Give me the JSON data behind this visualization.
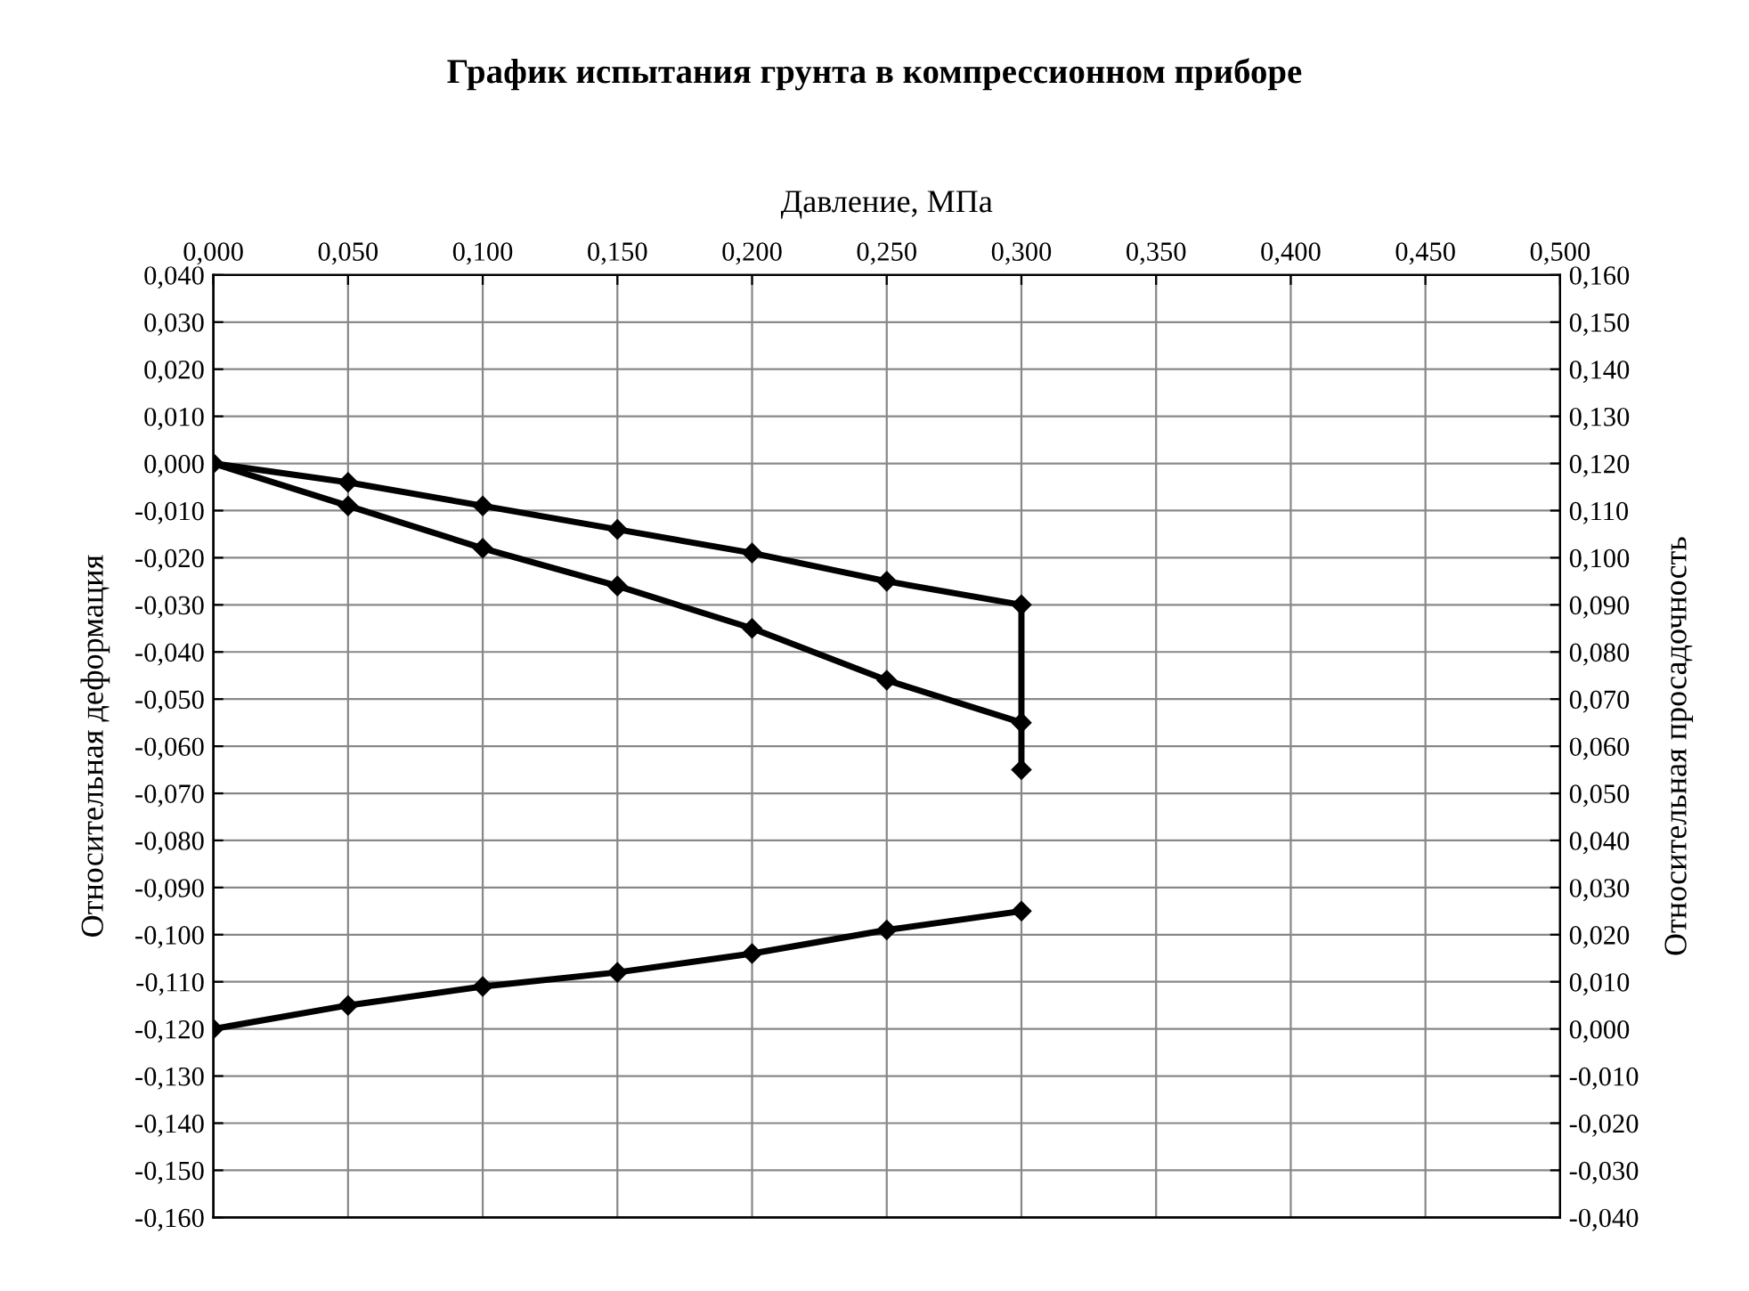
{
  "chart_data": {
    "type": "line",
    "title": "График испытания грунта в компрессионном приборе",
    "xlabel": "Давление, МПа",
    "ylabel": "Относительная деформация",
    "y2label": "Относительная просадочность",
    "marker": "diamond",
    "line_style": "solid",
    "grid": true,
    "series": [
      {
        "color": "#000000",
        "x": [
          0,
          0.05,
          0.1,
          0.15,
          0.2,
          0.25,
          0.3,
          0.3
        ],
        "values": [
          0,
          -0.004,
          -0.009,
          -0.014,
          -0.019,
          -0.025,
          -0.03,
          -0.065
        ]
      },
      {
        "color": "#000000",
        "x": [
          0,
          0.05,
          0.1,
          0.15,
          0.2,
          0.25,
          0.3
        ],
        "values": [
          0,
          -0.009,
          -0.018,
          -0.026,
          -0.035,
          -0.046,
          -0.055
        ]
      },
      {
        "color": "#000000",
        "axis": "y2",
        "x": [
          0,
          0.05,
          0.1,
          0.15,
          0.2,
          0.25,
          0.3
        ],
        "values": [
          0,
          0.005,
          0.009,
          0.012,
          0.016,
          0.021,
          0.025
        ]
      }
    ],
    "xlim": [
      0,
      0.5
    ],
    "xticks": [
      {
        "value": 0,
        "label": "0,000"
      },
      {
        "value": 0.05,
        "label": "0,050"
      },
      {
        "value": 0.1,
        "label": "0,100"
      },
      {
        "value": 0.15,
        "label": "0,150"
      },
      {
        "value": 0.2,
        "label": "0,200"
      },
      {
        "value": 0.25,
        "label": "0,250"
      },
      {
        "value": 0.3,
        "label": "0,300"
      },
      {
        "value": 0.35,
        "label": "0,350"
      },
      {
        "value": 0.4,
        "label": "0,400"
      },
      {
        "value": 0.45,
        "label": "0,450"
      },
      {
        "value": 0.5,
        "label": "0,500"
      }
    ],
    "ylim": [
      -0.16,
      0.04
    ],
    "yticks": [
      {
        "value": 0.04,
        "label": "0,040"
      },
      {
        "value": 0.03,
        "label": "0,030"
      },
      {
        "value": 0.02,
        "label": "0,020"
      },
      {
        "value": 0.01,
        "label": "0,010"
      },
      {
        "value": 0,
        "label": "0,000"
      },
      {
        "value": -0.01,
        "label": "-0,010"
      },
      {
        "value": -0.02,
        "label": "-0,020"
      },
      {
        "value": -0.03,
        "label": "-0,030"
      },
      {
        "value": -0.04,
        "label": "-0,040"
      },
      {
        "value": -0.05,
        "label": "-0,050"
      },
      {
        "value": -0.06,
        "label": "-0,060"
      },
      {
        "value": -0.07,
        "label": "-0,070"
      },
      {
        "value": -0.08,
        "label": "-0,080"
      },
      {
        "value": -0.09,
        "label": "-0,090"
      },
      {
        "value": -0.1,
        "label": "-0,100"
      },
      {
        "value": -0.11,
        "label": "-0,110"
      },
      {
        "value": -0.12,
        "label": "-0,120"
      },
      {
        "value": -0.13,
        "label": "-0,130"
      },
      {
        "value": -0.14,
        "label": "-0,140"
      },
      {
        "value": -0.15,
        "label": "-0,150"
      },
      {
        "value": -0.16,
        "label": "-0,160"
      }
    ],
    "y2lim": [
      -0.04,
      0.16
    ],
    "y2ticks": [
      {
        "value": 0.16,
        "label": "0,160"
      },
      {
        "value": 0.15,
        "label": "0,150"
      },
      {
        "value": 0.14,
        "label": "0,140"
      },
      {
        "value": 0.13,
        "label": "0,130"
      },
      {
        "value": 0.12,
        "label": "0,120"
      },
      {
        "value": 0.11,
        "label": "0,110"
      },
      {
        "value": 0.1,
        "label": "0,100"
      },
      {
        "value": 0.09,
        "label": "0,090"
      },
      {
        "value": 0.08,
        "label": "0,080"
      },
      {
        "value": 0.07,
        "label": "0,070"
      },
      {
        "value": 0.06,
        "label": "0,060"
      },
      {
        "value": 0.05,
        "label": "0,050"
      },
      {
        "value": 0.04,
        "label": "0,040"
      },
      {
        "value": 0.03,
        "label": "0,030"
      },
      {
        "value": 0.02,
        "label": "0,020"
      },
      {
        "value": 0.01,
        "label": "0,010"
      },
      {
        "value": 0,
        "label": "0,000"
      },
      {
        "value": -0.01,
        "label": "-0,010"
      },
      {
        "value": -0.02,
        "label": "-0,020"
      },
      {
        "value": -0.03,
        "label": "-0,030"
      },
      {
        "value": -0.04,
        "label": "-0,040"
      }
    ]
  }
}
